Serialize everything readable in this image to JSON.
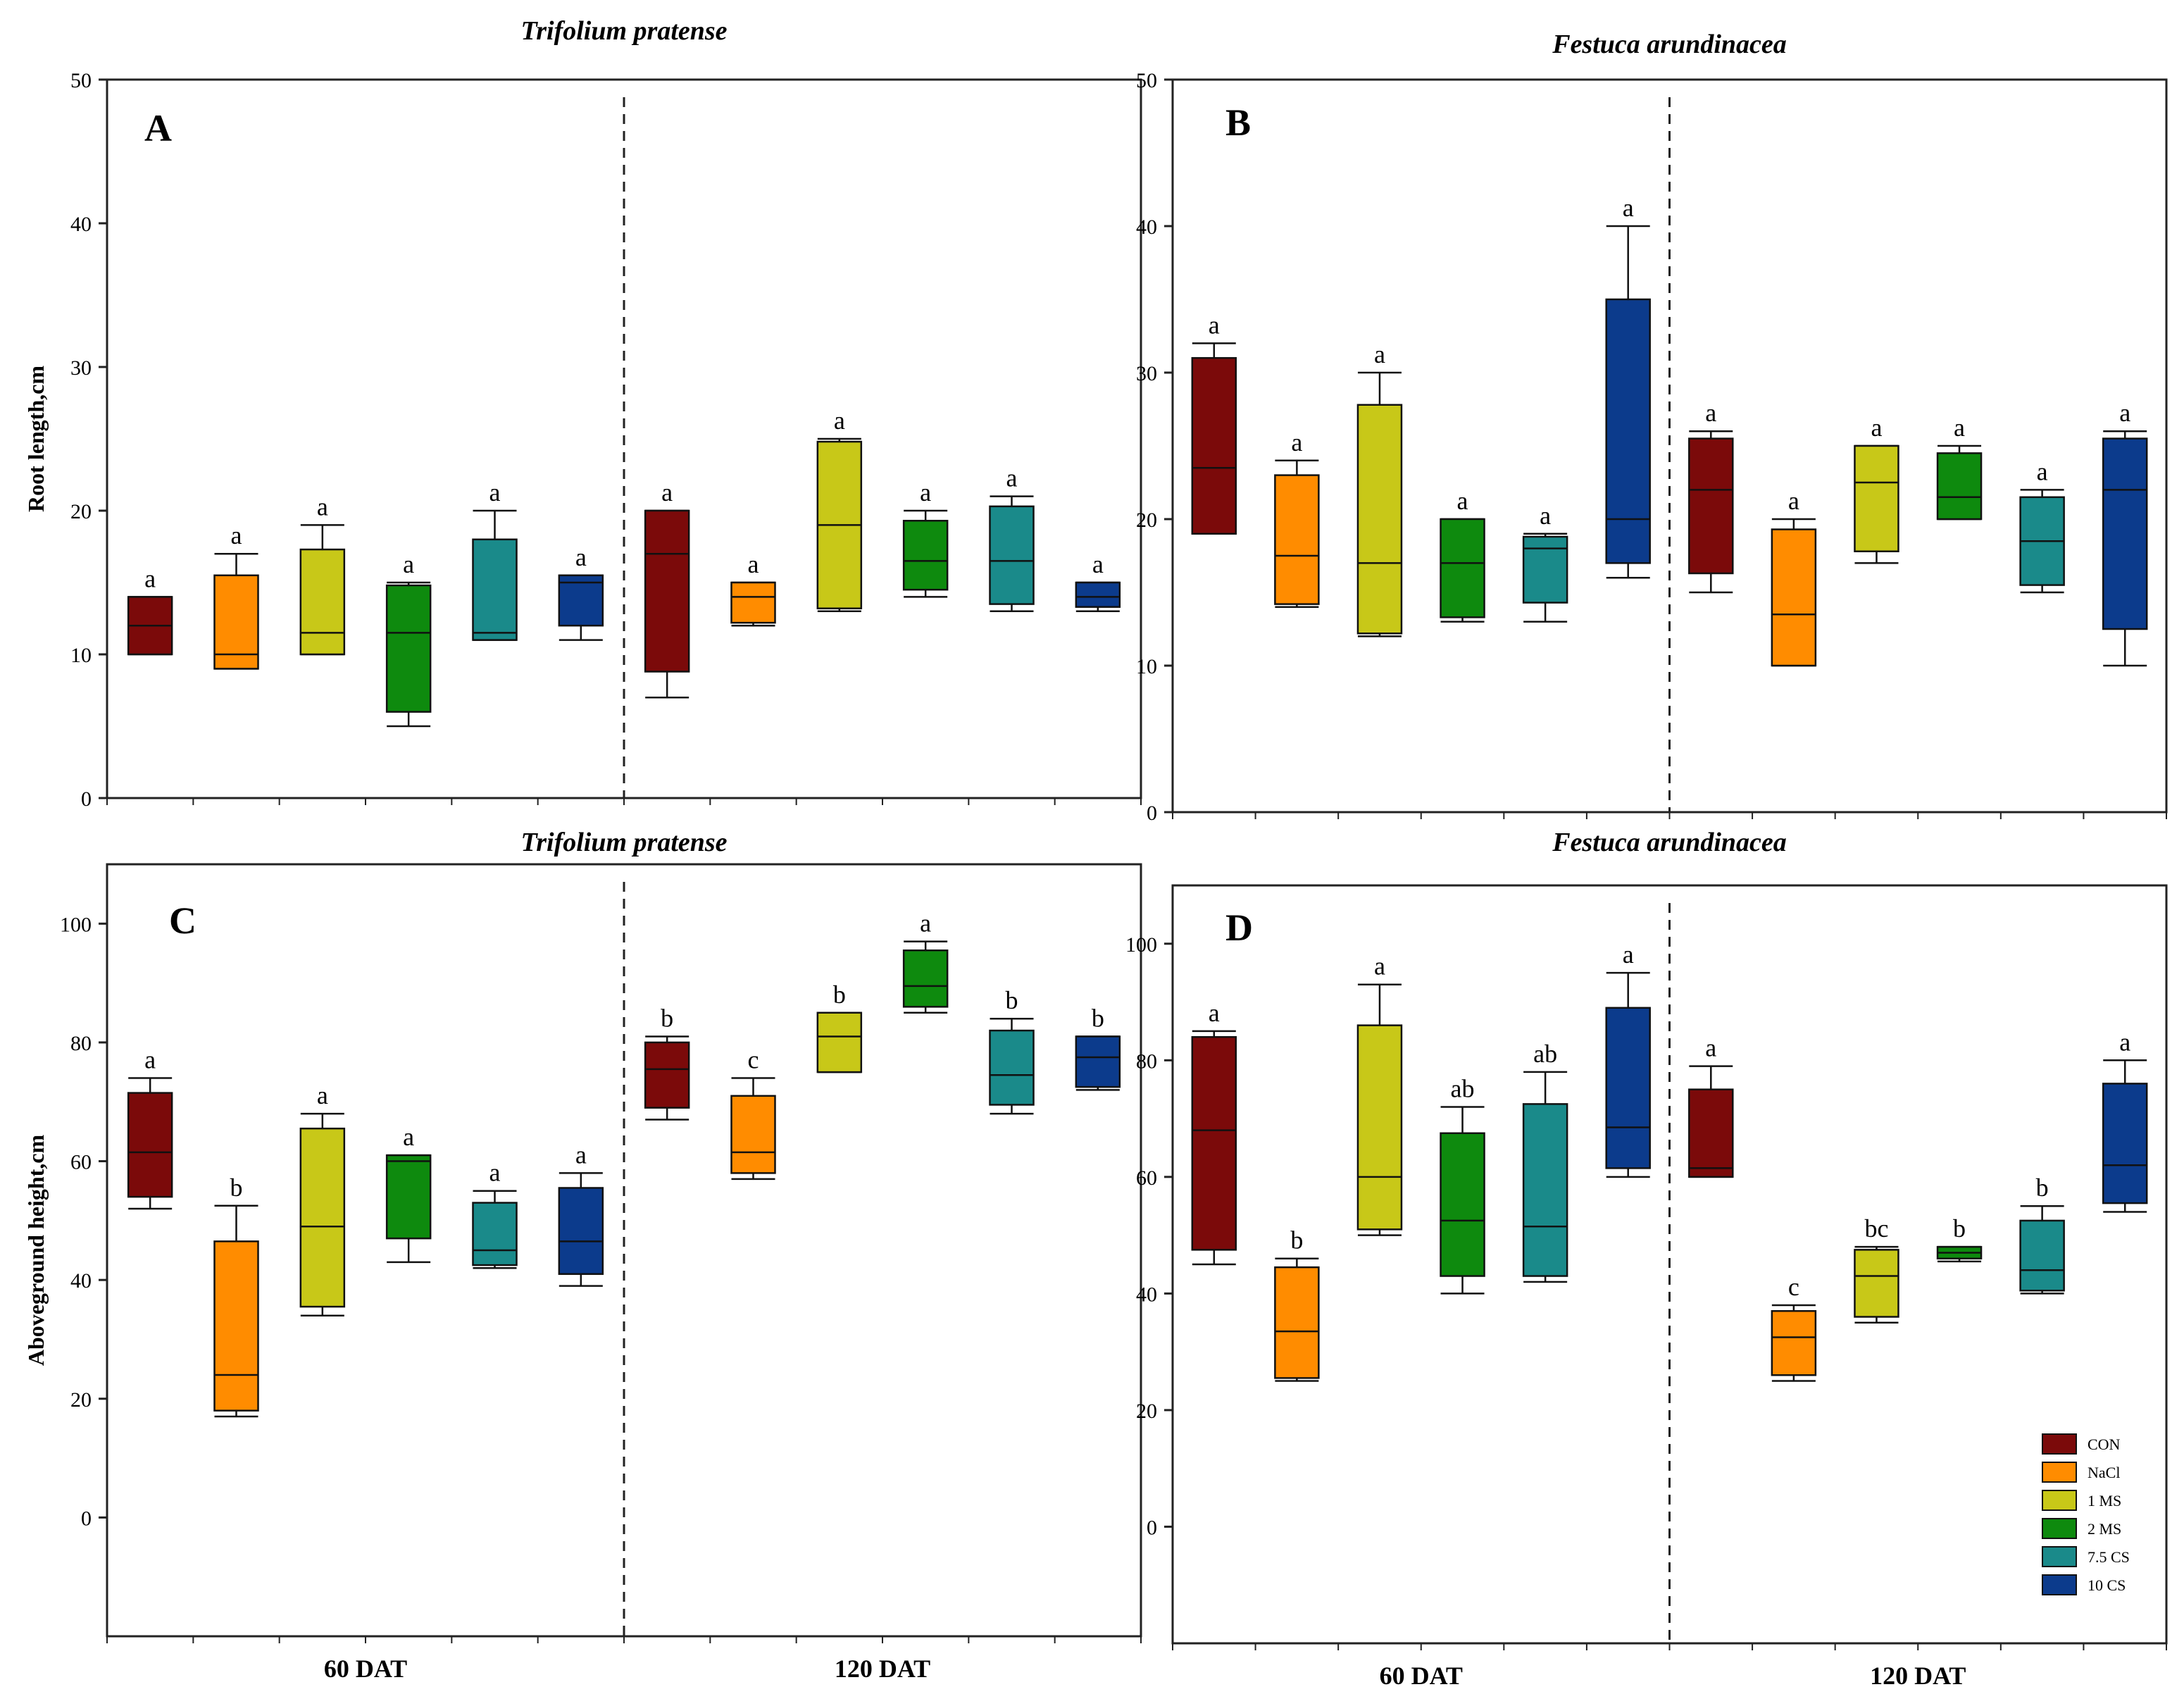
{
  "legend": [
    {
      "label": "CON",
      "color": "#7b0a0a"
    },
    {
      "label": "NaCl",
      "color": "#ff8c00"
    },
    {
      "label": "1 MS",
      "color": "#c8c818"
    },
    {
      "label": "2 MS",
      "color": "#0e8a0e"
    },
    {
      "label": "7.5 CS",
      "color": "#1a8a8a"
    },
    {
      "label": "10 CS",
      "color": "#0c3b8c"
    }
  ],
  "chart_data": [
    {
      "id": "A",
      "panel_letter": "A",
      "title": "Trifolium pratense",
      "type": "box",
      "ylabel": "Root length,cm",
      "xlabel": "",
      "ylim": [
        0,
        50
      ],
      "yticks": [
        "0",
        "10",
        "20",
        "30",
        "40",
        "50"
      ],
      "groups": [
        "60 DAT",
        "120 DAT"
      ],
      "show_group_labels": false,
      "legend": false,
      "boxes": [
        {
          "group": 0,
          "treatment": 0,
          "min": 10,
          "q1": 10,
          "median": 12,
          "q3": 14,
          "max": 14,
          "letter": "a"
        },
        {
          "group": 0,
          "treatment": 1,
          "min": 9,
          "q1": 9,
          "median": 10,
          "q3": 15.5,
          "max": 17,
          "letter": "a"
        },
        {
          "group": 0,
          "treatment": 2,
          "min": 10,
          "q1": 10,
          "median": 11.5,
          "q3": 17.3,
          "max": 19,
          "letter": "a"
        },
        {
          "group": 0,
          "treatment": 3,
          "min": 5,
          "q1": 6,
          "median": 11.5,
          "q3": 14.8,
          "max": 15,
          "letter": "a"
        },
        {
          "group": 0,
          "treatment": 4,
          "min": 11,
          "q1": 11,
          "median": 11.5,
          "q3": 18,
          "max": 20,
          "letter": "a"
        },
        {
          "group": 0,
          "treatment": 5,
          "min": 11,
          "q1": 12,
          "median": 15,
          "q3": 15.5,
          "max": 15.5,
          "letter": "a"
        },
        {
          "group": 1,
          "treatment": 0,
          "min": 7,
          "q1": 8.8,
          "median": 17,
          "q3": 20,
          "max": 20,
          "letter": "a"
        },
        {
          "group": 1,
          "treatment": 1,
          "min": 12,
          "q1": 12.2,
          "median": 14,
          "q3": 15,
          "max": 15,
          "letter": "a"
        },
        {
          "group": 1,
          "treatment": 2,
          "min": 13,
          "q1": 13.2,
          "median": 19,
          "q3": 24.8,
          "max": 25,
          "letter": "a"
        },
        {
          "group": 1,
          "treatment": 3,
          "min": 14,
          "q1": 14.5,
          "median": 16.5,
          "q3": 19.3,
          "max": 20,
          "letter": "a"
        },
        {
          "group": 1,
          "treatment": 4,
          "min": 13,
          "q1": 13.5,
          "median": 16.5,
          "q3": 20.3,
          "max": 21,
          "letter": "a"
        },
        {
          "group": 1,
          "treatment": 5,
          "min": 13,
          "q1": 13.3,
          "median": 14,
          "q3": 15,
          "max": 15,
          "letter": "a"
        }
      ]
    },
    {
      "id": "B",
      "panel_letter": "B",
      "title": "Festuca arundinacea",
      "type": "box",
      "ylabel": "",
      "xlabel": "",
      "ylim": [
        0,
        50
      ],
      "yticks": [
        "0",
        "10",
        "20",
        "30",
        "40",
        "50"
      ],
      "groups": [
        "60 DAT",
        "120 DAT"
      ],
      "show_group_labels": false,
      "legend": false,
      "boxes": [
        {
          "group": 0,
          "treatment": 0,
          "min": 19,
          "q1": 19,
          "median": 23.5,
          "q3": 31,
          "max": 32,
          "letter": "a"
        },
        {
          "group": 0,
          "treatment": 1,
          "min": 14,
          "q1": 14.2,
          "median": 17.5,
          "q3": 23,
          "max": 24,
          "letter": "a"
        },
        {
          "group": 0,
          "treatment": 2,
          "min": 12,
          "q1": 12.2,
          "median": 17,
          "q3": 27.8,
          "max": 30,
          "letter": "a"
        },
        {
          "group": 0,
          "treatment": 3,
          "min": 13,
          "q1": 13.3,
          "median": 17,
          "q3": 20,
          "max": 20,
          "letter": "a"
        },
        {
          "group": 0,
          "treatment": 4,
          "min": 13,
          "q1": 14.3,
          "median": 18,
          "q3": 18.8,
          "max": 19,
          "letter": "a"
        },
        {
          "group": 0,
          "treatment": 5,
          "min": 16,
          "q1": 17,
          "median": 20,
          "q3": 35,
          "max": 40,
          "letter": "a"
        },
        {
          "group": 1,
          "treatment": 0,
          "min": 15,
          "q1": 16.3,
          "median": 22,
          "q3": 25.5,
          "max": 26,
          "letter": "a"
        },
        {
          "group": 1,
          "treatment": 1,
          "min": 10,
          "q1": 10,
          "median": 13.5,
          "q3": 19.3,
          "max": 20,
          "letter": "a"
        },
        {
          "group": 1,
          "treatment": 2,
          "min": 17,
          "q1": 17.8,
          "median": 22.5,
          "q3": 25,
          "max": 25,
          "letter": "a"
        },
        {
          "group": 1,
          "treatment": 3,
          "min": 20,
          "q1": 20,
          "median": 21.5,
          "q3": 24.5,
          "max": 25,
          "letter": "a"
        },
        {
          "group": 1,
          "treatment": 4,
          "min": 15,
          "q1": 15.5,
          "median": 18.5,
          "q3": 21.5,
          "max": 22,
          "letter": "a"
        },
        {
          "group": 1,
          "treatment": 5,
          "min": 10,
          "q1": 12.5,
          "median": 22,
          "q3": 25.5,
          "max": 26,
          "letter": "a"
        }
      ]
    },
    {
      "id": "C",
      "panel_letter": "C",
      "title": "Trifolium pratense",
      "type": "box",
      "ylabel": "Aboveground height,cm",
      "xlabel": "",
      "ylim": [
        -20,
        110
      ],
      "yticks": [
        "0",
        "20",
        "40",
        "60",
        "80",
        "100"
      ],
      "groups": [
        "60 DAT",
        "120 DAT"
      ],
      "show_group_labels": true,
      "legend": false,
      "boxes": [
        {
          "group": 0,
          "treatment": 0,
          "min": 52,
          "q1": 54,
          "median": 61.5,
          "q3": 71.5,
          "max": 74,
          "letter": "a"
        },
        {
          "group": 0,
          "treatment": 1,
          "min": 17,
          "q1": 18,
          "median": 24,
          "q3": 46.5,
          "max": 52.5,
          "letter": "b"
        },
        {
          "group": 0,
          "treatment": 2,
          "min": 34,
          "q1": 35.5,
          "median": 49,
          "q3": 65.5,
          "max": 68,
          "letter": "a"
        },
        {
          "group": 0,
          "treatment": 3,
          "min": 43,
          "q1": 47,
          "median": 60,
          "q3": 61,
          "max": 61,
          "letter": "a"
        },
        {
          "group": 0,
          "treatment": 4,
          "min": 42,
          "q1": 42.5,
          "median": 45,
          "q3": 53,
          "max": 55,
          "letter": "a"
        },
        {
          "group": 0,
          "treatment": 5,
          "min": 39,
          "q1": 41,
          "median": 46.5,
          "q3": 55.5,
          "max": 58,
          "letter": "a"
        },
        {
          "group": 1,
          "treatment": 0,
          "min": 67,
          "q1": 69,
          "median": 75.5,
          "q3": 80,
          "max": 81,
          "letter": "b"
        },
        {
          "group": 1,
          "treatment": 1,
          "min": 57,
          "q1": 58,
          "median": 61.5,
          "q3": 71,
          "max": 74,
          "letter": "c"
        },
        {
          "group": 1,
          "treatment": 2,
          "min": 75,
          "q1": 75,
          "median": 81,
          "q3": 85,
          "max": 85,
          "letter": "b"
        },
        {
          "group": 1,
          "treatment": 3,
          "min": 85,
          "q1": 86,
          "median": 89.5,
          "q3": 95.5,
          "max": 97,
          "letter": "a"
        },
        {
          "group": 1,
          "treatment": 4,
          "min": 68,
          "q1": 69.5,
          "median": 74.5,
          "q3": 82,
          "max": 84,
          "letter": "b"
        },
        {
          "group": 1,
          "treatment": 5,
          "min": 72,
          "q1": 72.5,
          "median": 77.5,
          "q3": 81,
          "max": 81,
          "letter": "b"
        }
      ]
    },
    {
      "id": "D",
      "panel_letter": "D",
      "title": "Festuca arundinacea",
      "type": "box",
      "ylabel": "",
      "xlabel": "",
      "ylim": [
        -20,
        110
      ],
      "yticks": [
        "0",
        "20",
        "40",
        "60",
        "80",
        "100"
      ],
      "groups": [
        "60 DAT",
        "120 DAT"
      ],
      "show_group_labels": true,
      "legend": true,
      "boxes": [
        {
          "group": 0,
          "treatment": 0,
          "min": 45,
          "q1": 47.5,
          "median": 68,
          "q3": 84,
          "max": 85,
          "letter": "a"
        },
        {
          "group": 0,
          "treatment": 1,
          "min": 25,
          "q1": 25.5,
          "median": 33.5,
          "q3": 44.5,
          "max": 46,
          "letter": "b"
        },
        {
          "group": 0,
          "treatment": 2,
          "min": 50,
          "q1": 51,
          "median": 60,
          "q3": 86,
          "max": 93,
          "letter": "a"
        },
        {
          "group": 0,
          "treatment": 3,
          "min": 40,
          "q1": 43,
          "median": 52.5,
          "q3": 67.5,
          "max": 72,
          "letter": "ab"
        },
        {
          "group": 0,
          "treatment": 4,
          "min": 42,
          "q1": 43,
          "median": 51.5,
          "q3": 72.5,
          "max": 78,
          "letter": "ab"
        },
        {
          "group": 0,
          "treatment": 5,
          "min": 60,
          "q1": 61.5,
          "median": 68.5,
          "q3": 89,
          "max": 95,
          "letter": "a"
        },
        {
          "group": 1,
          "treatment": 0,
          "min": 60,
          "q1": 60,
          "median": 61.5,
          "q3": 75,
          "max": 79,
          "letter": "a"
        },
        {
          "group": 1,
          "treatment": 1,
          "min": 25,
          "q1": 26,
          "median": 32.5,
          "q3": 37,
          "max": 38,
          "letter": "c"
        },
        {
          "group": 1,
          "treatment": 2,
          "min": 35,
          "q1": 36,
          "median": 43,
          "q3": 47.5,
          "max": 48,
          "letter": "bc"
        },
        {
          "group": 1,
          "treatment": 3,
          "min": 45.5,
          "q1": 46,
          "median": 47,
          "q3": 48,
          "max": 48,
          "letter": "b"
        },
        {
          "group": 1,
          "treatment": 4,
          "min": 40,
          "q1": 40.5,
          "median": 44,
          "q3": 52.5,
          "max": 55,
          "letter": "b"
        },
        {
          "group": 1,
          "treatment": 5,
          "min": 54,
          "q1": 55.5,
          "median": 62,
          "q3": 76,
          "max": 80,
          "letter": "a"
        }
      ]
    }
  ]
}
